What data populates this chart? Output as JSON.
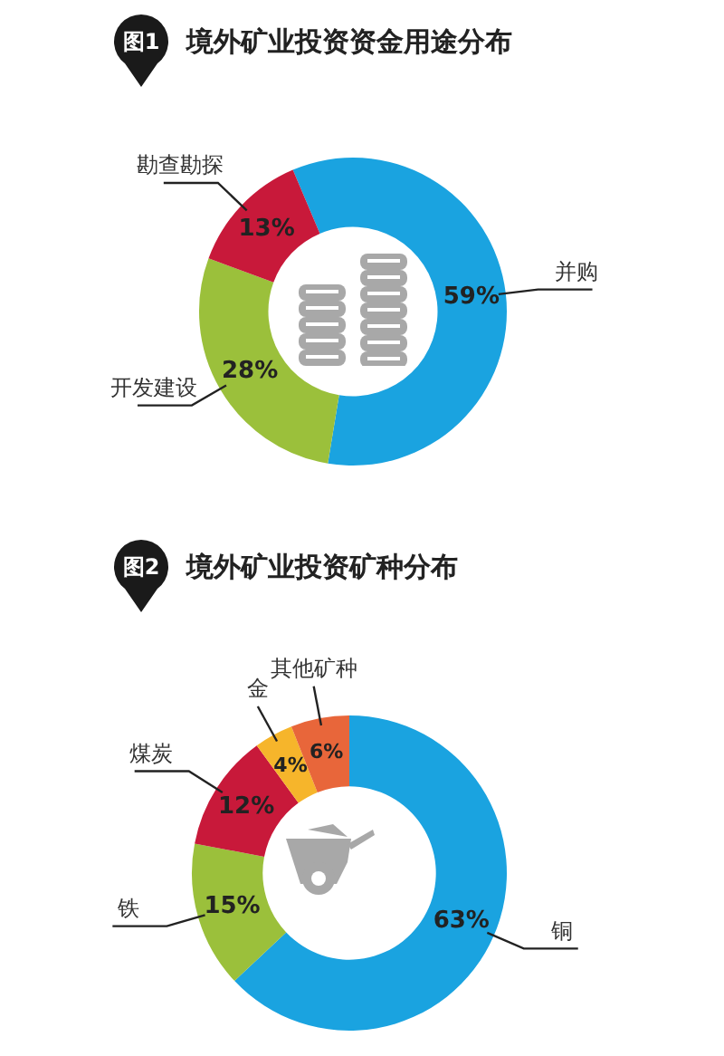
{
  "chart_data": [
    {
      "type": "donut",
      "title": "境外矿业投资资金用途分布",
      "annotations": [
        "图1"
      ],
      "categories": [
        "并购",
        "开发建设",
        "勘查勘探"
      ],
      "values": [
        59,
        28,
        13
      ],
      "colors": [
        "#1aa3e0",
        "#9bc03b",
        "#c8193a"
      ],
      "value_labels": [
        "59%",
        "28%",
        "13%"
      ]
    },
    {
      "type": "donut",
      "title": "境外矿业投资矿种分布",
      "annotations": [
        "图2"
      ],
      "categories": [
        "铜",
        "铁",
        "煤炭",
        "金",
        "其他矿种"
      ],
      "values": [
        63,
        15,
        12,
        4,
        6
      ],
      "colors": [
        "#1aa3e0",
        "#9bc03b",
        "#c8193a",
        "#f6b52b",
        "#e8663a"
      ],
      "value_labels": [
        "63%",
        "15%",
        "12%",
        "4%",
        "6%"
      ]
    }
  ]
}
